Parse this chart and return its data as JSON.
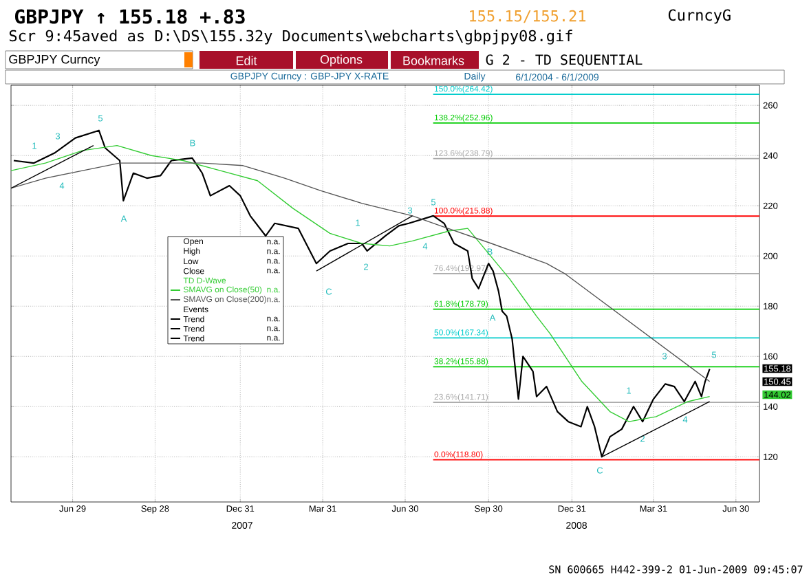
{
  "chart_data": {
    "type": "line",
    "title": "GBPJPY ↑ 155.18  +.83",
    "subtitle": "Scr 9:45aved as D:\\DS\\155.32y Documents\\webcharts\\gbpjpy08.gif",
    "xlim": [
      "2007-04-22",
      "2009-07-26"
    ],
    "ylim": [
      102,
      268
    ],
    "xticks": [
      {
        "value": "2007-06-29",
        "label": "Jun 29"
      },
      {
        "value": "2007-09-28",
        "label": "Sep 28"
      },
      {
        "value": "2007-12-31",
        "label": "Dec 31"
      },
      {
        "value": "2008-03-31",
        "label": "Mar 31"
      },
      {
        "value": "2008-06-30",
        "label": "Jun 30"
      },
      {
        "value": "2008-09-30",
        "label": "Sep 30"
      },
      {
        "value": "2008-12-31",
        "label": "Dec 31"
      },
      {
        "value": "2009-03-31",
        "label": "Mar 31"
      },
      {
        "value": "2009-06-30",
        "label": "Jun 30"
      }
    ],
    "yticks": [
      120,
      140,
      160,
      180,
      200,
      220,
      240,
      260
    ],
    "grid": true,
    "legend": "left",
    "series": [
      {
        "color": "#000000",
        "x": [
          "2007-04-25",
          "2007-05-17",
          "2007-06-09",
          "2007-07-02",
          "2007-07-28",
          "2007-08-04",
          "2007-08-20",
          "2007-08-24",
          "2007-09-04",
          "2007-09-19",
          "2007-10-04",
          "2007-10-16",
          "2007-11-08",
          "2007-11-19",
          "2007-11-28",
          "2007-12-19",
          "2007-12-31",
          "2008-01-11",
          "2008-01-28",
          "2008-02-07",
          "2008-03-04",
          "2008-03-24",
          "2008-04-08",
          "2008-04-28",
          "2008-05-13",
          "2008-05-19",
          "2008-06-08",
          "2008-06-23",
          "2008-07-04",
          "2008-07-31",
          "2008-08-12",
          "2008-08-23",
          "2008-09-07",
          "2008-09-12",
          "2008-09-19",
          "2008-09-30",
          "2008-10-05",
          "2008-10-11",
          "2008-10-15",
          "2008-10-20",
          "2008-10-26",
          "2008-11-02",
          "2008-11-07",
          "2008-11-18",
          "2008-11-22",
          "2008-12-03",
          "2008-12-15",
          "2008-12-27",
          "2009-01-10",
          "2009-01-17",
          "2009-01-25",
          "2009-02-02",
          "2009-02-11",
          "2009-02-24",
          "2009-03-09",
          "2009-03-19",
          "2009-03-31",
          "2009-04-13",
          "2009-04-23",
          "2009-05-04",
          "2009-05-16",
          "2009-05-23",
          "2009-05-27",
          "2009-06-01"
        ],
        "values": [
          238,
          237,
          241,
          247,
          250,
          243,
          238,
          222,
          233,
          231,
          232,
          238,
          239,
          233,
          224,
          228,
          224,
          216,
          208,
          213,
          211,
          197,
          202,
          205,
          205,
          202,
          208,
          212,
          213,
          216,
          213,
          205,
          202,
          191,
          187,
          197,
          194,
          186,
          178,
          176,
          167,
          143,
          160,
          154,
          144,
          148,
          138,
          134,
          132,
          140,
          132,
          120,
          128,
          131,
          140,
          134,
          143,
          149,
          148,
          142,
          150,
          144,
          150,
          155
        ]
      },
      {
        "name": "SMAVG on Close(50)",
        "color": "#33cc33",
        "x": [
          "2007-04-22",
          "2007-05-30",
          "2007-07-10",
          "2007-08-17",
          "2007-09-24",
          "2007-10-29",
          "2007-12-09",
          "2008-01-19",
          "2008-02-27",
          "2008-04-08",
          "2008-05-13",
          "2008-06-13",
          "2008-07-08",
          "2008-08-18",
          "2008-09-07",
          "2008-10-23",
          "2008-11-22",
          "2008-12-07",
          "2009-01-11",
          "2009-02-11",
          "2009-03-04",
          "2009-04-03",
          "2009-05-08",
          "2009-06-01"
        ],
        "values": [
          234,
          237,
          242,
          244,
          240,
          238,
          234,
          230,
          219,
          209,
          205,
          204,
          206,
          210,
          211,
          191,
          176,
          169,
          150,
          138,
          134,
          136,
          142,
          144
        ]
      },
      {
        "name": "SMAVG on Close(200)",
        "color": "#555555",
        "x": [
          "2007-04-22",
          "2007-05-30",
          "2007-07-10",
          "2007-08-20",
          "2007-10-04",
          "2007-11-19",
          "2008-01-03",
          "2008-02-18",
          "2008-03-29",
          "2008-05-13",
          "2008-07-08",
          "2008-08-08",
          "2008-10-03",
          "2008-12-03",
          "2008-12-23",
          "2009-06-01"
        ],
        "values": [
          227,
          231,
          234,
          237,
          237,
          237,
          236,
          231,
          226,
          221,
          216,
          212,
          205,
          197,
          193,
          150
        ]
      },
      {
        "name": "Trend",
        "color": "#000000",
        "x": [
          "2007-04-22",
          "2007-07-22"
        ],
        "values": [
          227,
          244
        ]
      },
      {
        "name": "Trend",
        "color": "#000000",
        "x": [
          "2008-03-24",
          "2008-07-08"
        ],
        "values": [
          194,
          216
        ]
      },
      {
        "name": "Trend",
        "color": "#000000",
        "x": [
          "2009-02-02",
          "2009-06-01"
        ],
        "values": [
          120,
          142
        ]
      }
    ],
    "ref_lines": [
      {
        "axis": "y",
        "value": 264.42,
        "label": "150.0%(264.42)",
        "color": "#00cccc"
      },
      {
        "axis": "y",
        "value": 252.96,
        "label": "138.2%(252.96)",
        "color": "#00cc00"
      },
      {
        "axis": "y",
        "value": 238.79,
        "label": "123.6%(238.79)",
        "color": "#aaaaaa"
      },
      {
        "axis": "y",
        "value": 215.88,
        "label": "100.0%(215.88)",
        "color": "#ff0000"
      },
      {
        "axis": "y",
        "value": 192.97,
        "label": "76.4%(192.97)",
        "color": "#aaaaaa"
      },
      {
        "axis": "y",
        "value": 178.79,
        "label": "61.8%(178.79)",
        "color": "#00cc00"
      },
      {
        "axis": "y",
        "value": 167.34,
        "label": "50.0%(167.34)",
        "color": "#00cccc"
      },
      {
        "axis": "y",
        "value": 155.88,
        "label": "38.2%(155.88)",
        "color": "#00cc00"
      },
      {
        "axis": "y",
        "value": 141.71,
        "label": "23.6%(141.71)",
        "color": "#aaaaaa"
      },
      {
        "axis": "y",
        "value": 118.8,
        "label": "0.0%(118.80)",
        "color": "#ff0000"
      }
    ],
    "annotations": [
      "155.15/155.21",
      "CurncyG",
      "GBPJPY Curncy",
      "Edit",
      "Options",
      "Bookmarks",
      "G 2 - TD SEQUENTIAL",
      "GBPJPY Curncy : GBP-JPY X-RATE",
      "Daily",
      "6/1/2004 - 6/1/2009",
      "2007",
      "2008",
      "SN 600665 H442-399-2 01-Jun-2009 09:45:07",
      "Open",
      "High",
      "Low",
      "Close",
      "TD D-Wave",
      "Events",
      "n.a.",
      "155.18",
      "150.45",
      "144.02",
      "1",
      "3",
      "4",
      "5",
      "A",
      "B",
      "C",
      "1",
      "2",
      "3",
      "4",
      "5",
      "A",
      "B",
      "C",
      "1",
      "2",
      "3",
      "4",
      "5"
    ]
  }
}
